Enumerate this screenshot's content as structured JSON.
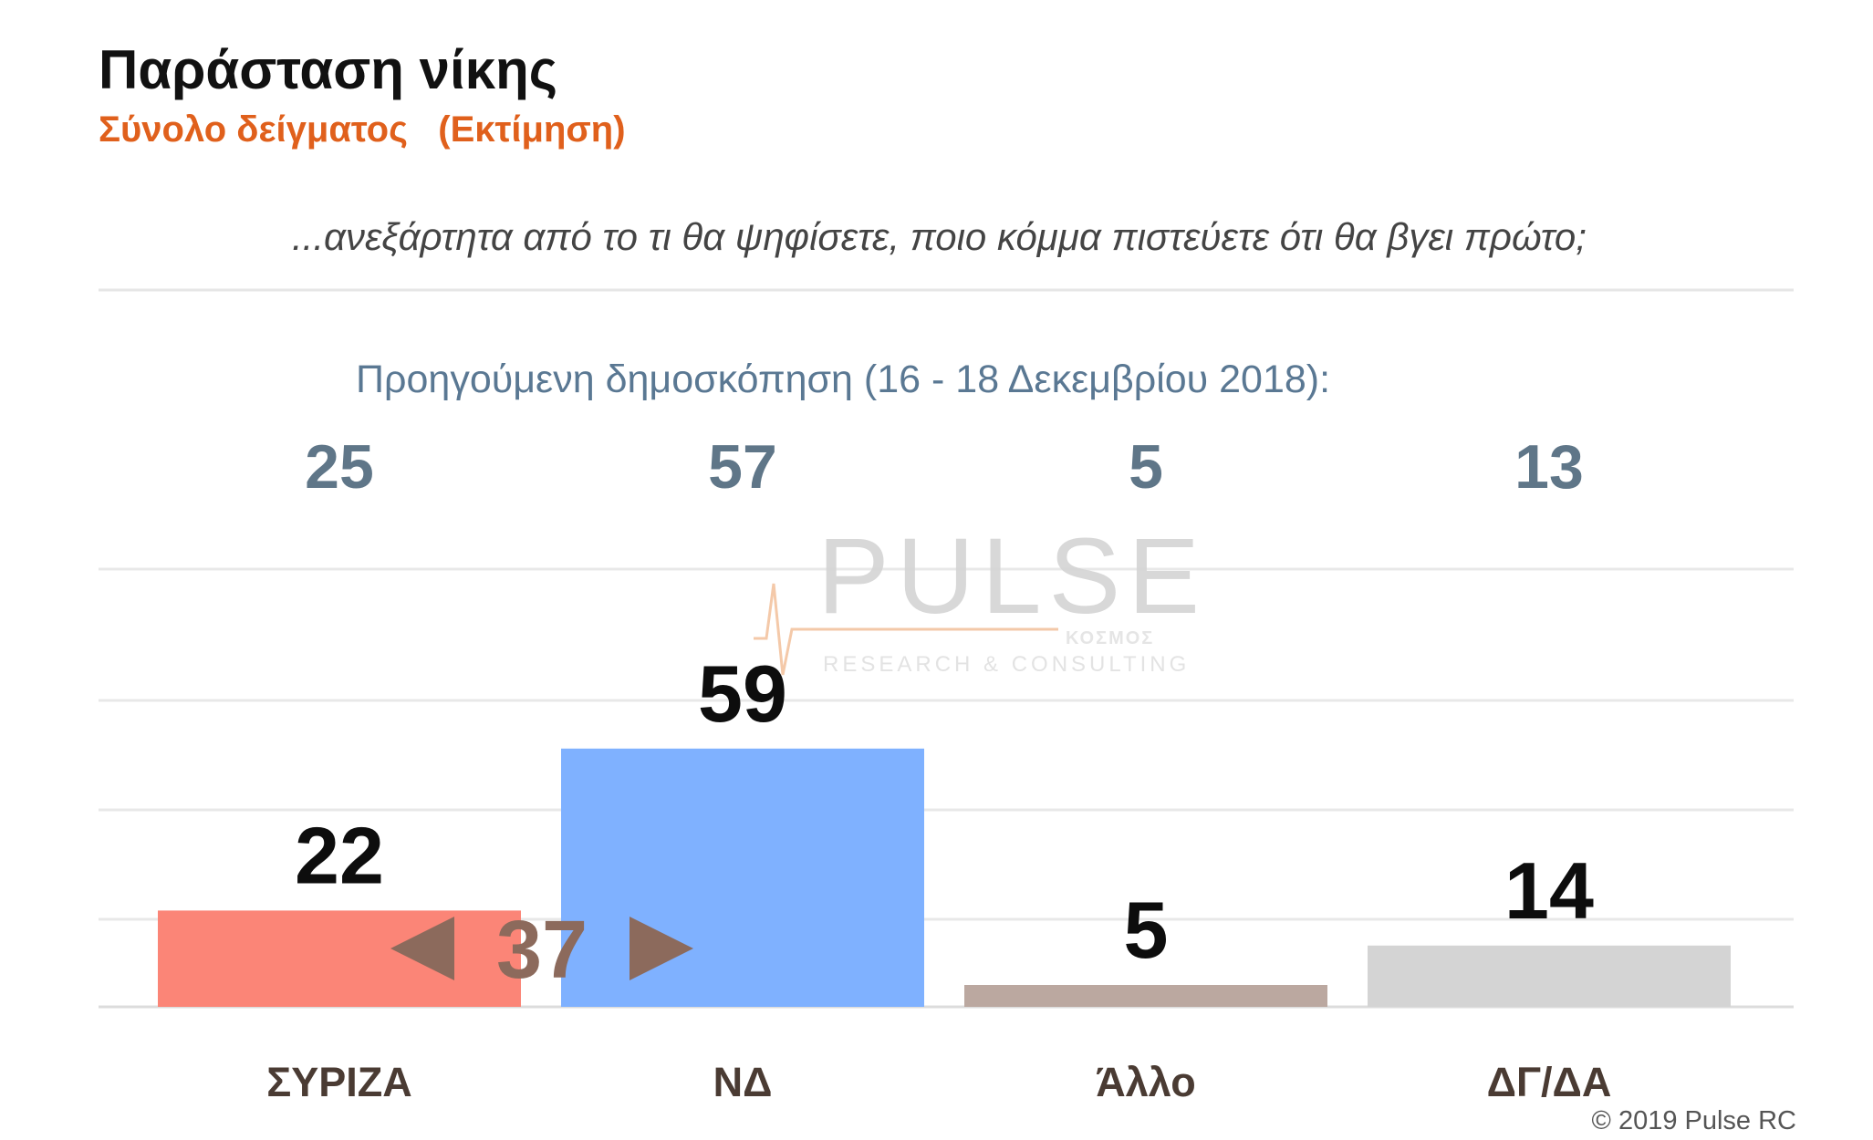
{
  "header": {
    "title": "Παράσταση νίκης",
    "subtitle": "Σύνολο δείγματος   (Εκτίμηση)",
    "question": "...ανεξάρτητα από το τι θα ψηφίσετε, ποιο κόμμα πιστεύετε ότι θα βγει πρώτο;"
  },
  "previous_poll": {
    "label": "Προηγούμενη δημοσκόπηση (16 - 18 Δεκεμβρίου 2018):",
    "values": [
      "25",
      "57",
      "5",
      "13"
    ]
  },
  "lead": {
    "value": "37",
    "color": "#8c6a5c"
  },
  "watermark": {
    "brand": "PULSE",
    "tagline": "RESEARCH & CONSULTING",
    "partner": "ΚΟΣΜΟΣ"
  },
  "footer": {
    "copyright": "© 2019 Pulse RC"
  },
  "chart_data": {
    "type": "bar",
    "categories": [
      "ΣΥΡΙΖΑ",
      "ΝΔ",
      "Άλλο",
      "ΔΓ/ΔΑ"
    ],
    "values": [
      22,
      59,
      5,
      14
    ],
    "colors": [
      "#fb8577",
      "#7fb1ff",
      "#bba8a0",
      "#d4d4d4"
    ],
    "ylim": [
      0,
      100
    ],
    "grid": true,
    "legend": "none"
  }
}
